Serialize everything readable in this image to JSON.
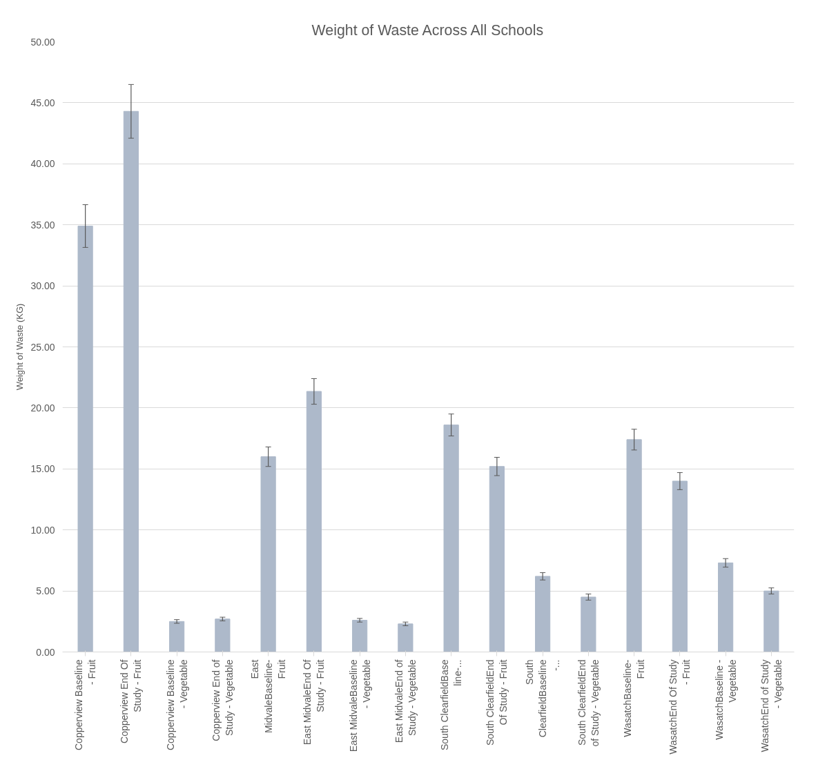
{
  "chart_data": {
    "type": "bar",
    "title": "Weight of Waste Across All Schools",
    "ylabel": "Weight of Waste (KG)",
    "categories": [
      "Copperview Baseline - Fruit",
      "Copperview End Of Study - Fruit",
      "Copperview Baseline - Vegetable",
      "Copperview End of Study - Vegetable",
      "East MidvaleBaseline- Fruit",
      "East MidvaleEnd Of Study - Fruit",
      "East MidvaleBaseline - Vegetable",
      "East MidvaleEnd of Study - Vegetable",
      "South ClearfieldBaseline-...",
      "South ClearfieldEnd Of Study - Fruit",
      "South ClearfieldBaseline -...",
      "South ClearfieldEnd of Study - Vegetable",
      "WasatchBaseline- Fruit",
      "WasatchEnd Of Study - Fruit",
      "WasatchBaseline - Vegetable",
      "WasatchEnd of Study - Vegetable"
    ],
    "values": [
      34.9,
      44.3,
      2.5,
      2.7,
      16.0,
      21.35,
      2.6,
      2.3,
      18.6,
      15.2,
      6.2,
      4.5,
      17.4,
      14.0,
      7.3,
      5.0
    ],
    "errors": [
      1.75,
      2.2,
      0.15,
      0.15,
      0.8,
      1.05,
      0.15,
      0.15,
      0.9,
      0.75,
      0.3,
      0.25,
      0.85,
      0.7,
      0.35,
      0.25
    ],
    "color": "#adb9ca",
    "ylim": [
      0,
      50
    ],
    "yticks": [
      {
        "value": 0,
        "label": "0.00"
      },
      {
        "value": 5,
        "label": "5.00"
      },
      {
        "value": 10,
        "label": "10.00"
      },
      {
        "value": 15,
        "label": "15.00"
      },
      {
        "value": 20,
        "label": "20.00"
      },
      {
        "value": 25,
        "label": "25.00"
      },
      {
        "value": 30,
        "label": "30.00"
      },
      {
        "value": 35,
        "label": "35.00"
      },
      {
        "value": 40,
        "label": "40.00"
      },
      {
        "value": 45,
        "label": "45.00"
      },
      {
        "value": 50,
        "label": "50.00"
      }
    ],
    "grid": "y"
  }
}
